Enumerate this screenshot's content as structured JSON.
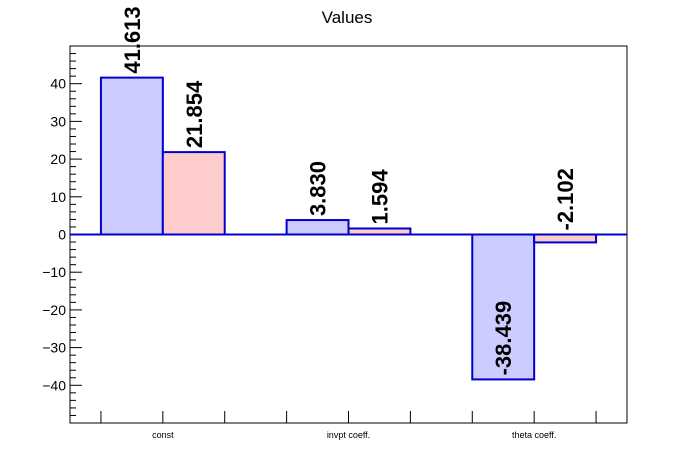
{
  "chart_data": {
    "type": "bar",
    "title": "Values",
    "xlabel": "",
    "ylabel": "",
    "categories": [
      "const",
      "invpt coeff.",
      "theta coeff."
    ],
    "series": [
      {
        "values": [
          41.613,
          3.83,
          -38.439
        ],
        "labels": [
          "41.613",
          "3.830",
          "-38.439"
        ],
        "fill": "#ccccff",
        "stroke": "#0000cc"
      },
      {
        "values": [
          21.854,
          1.594,
          -2.102
        ],
        "labels": [
          "21.854",
          "1.594",
          "-2.102"
        ],
        "fill": "#ffcccc",
        "stroke": "#0000cc"
      }
    ],
    "ylim": [
      -50,
      50
    ],
    "yticks": [
      -40,
      -30,
      -20,
      -10,
      0,
      10,
      20,
      30,
      40
    ],
    "ytick_labels": [
      "−40",
      "−30",
      "−20",
      "−10",
      "0",
      "10",
      "20",
      "30",
      "40"
    ],
    "grid": false,
    "legend": "none"
  }
}
